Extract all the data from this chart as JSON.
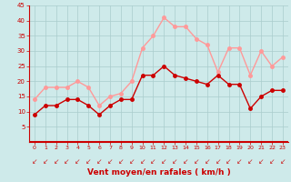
{
  "x": [
    0,
    1,
    2,
    3,
    4,
    5,
    6,
    7,
    8,
    9,
    10,
    11,
    12,
    13,
    14,
    15,
    16,
    17,
    18,
    19,
    20,
    21,
    22,
    23
  ],
  "wind_avg": [
    9,
    12,
    12,
    14,
    14,
    12,
    9,
    12,
    14,
    14,
    22,
    22,
    25,
    22,
    21,
    20,
    19,
    22,
    19,
    19,
    11,
    15,
    17,
    17
  ],
  "wind_gust": [
    14,
    18,
    18,
    18,
    20,
    18,
    12,
    15,
    16,
    20,
    31,
    35,
    41,
    38,
    38,
    34,
    32,
    23,
    31,
    31,
    22,
    30,
    25,
    28
  ],
  "ylim": [
    0,
    45
  ],
  "yticks": [
    5,
    10,
    15,
    20,
    25,
    30,
    35,
    40,
    45
  ],
  "xticks": [
    0,
    1,
    2,
    3,
    4,
    5,
    6,
    7,
    8,
    9,
    10,
    11,
    12,
    13,
    14,
    15,
    16,
    17,
    18,
    19,
    20,
    21,
    22,
    23
  ],
  "xlabel": "Vent moyen/en rafales ( km/h )",
  "bg_color": "#ceeaea",
  "grid_color": "#aacccc",
  "avg_color": "#cc0000",
  "gust_color": "#ff9999",
  "arrow_color": "#cc2222",
  "xlabel_color": "#cc0000",
  "tick_color": "#cc0000",
  "line_width": 1.0,
  "marker_size": 2.5
}
